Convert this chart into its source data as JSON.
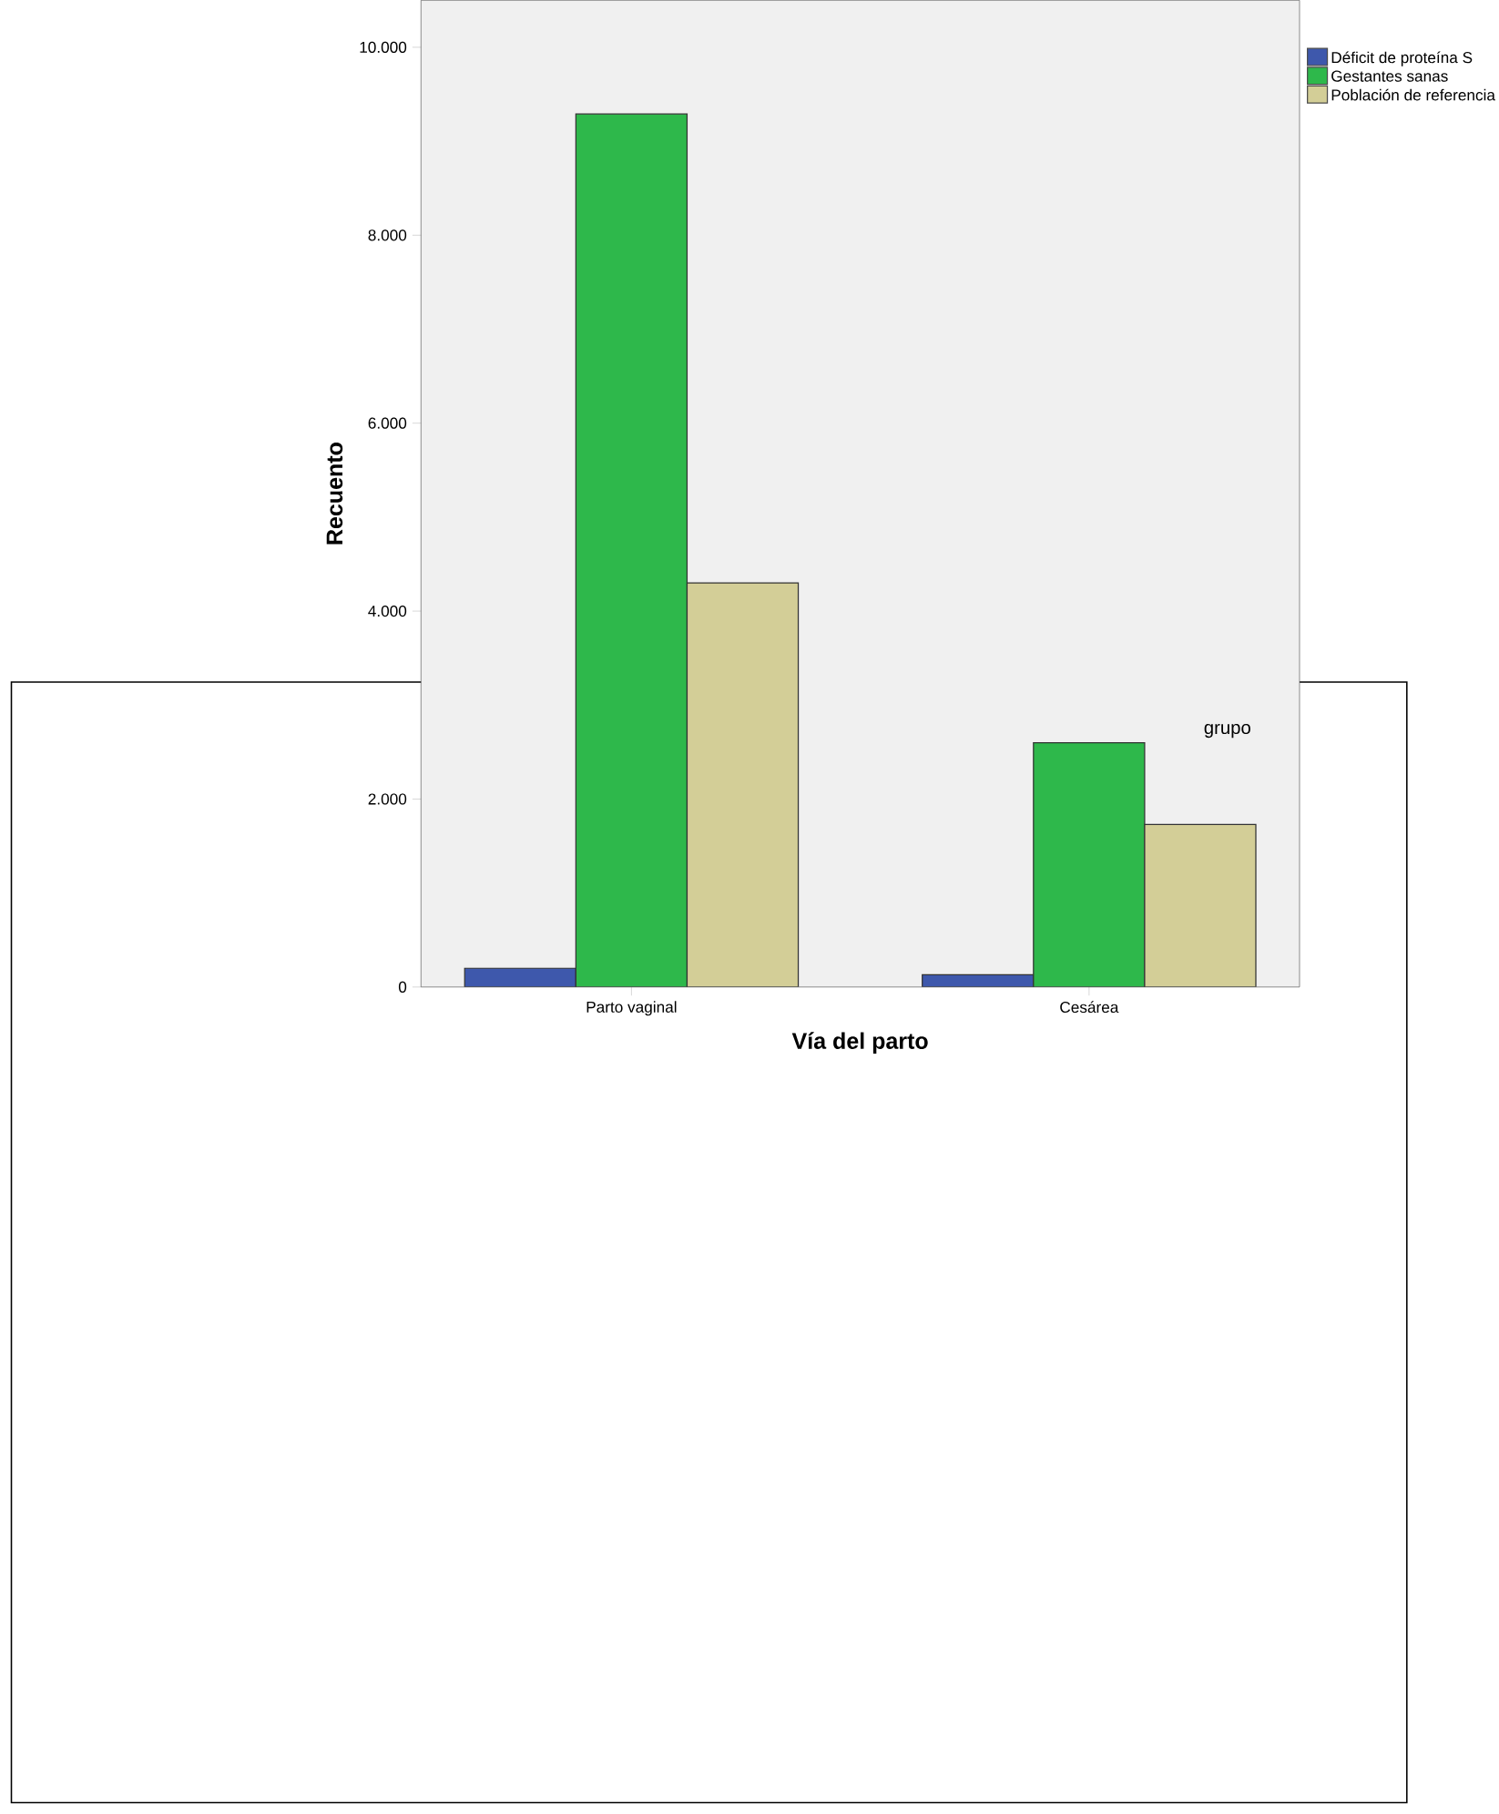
{
  "chart_data": {
    "type": "bar",
    "xlabel": "Vía del parto",
    "ylabel": "Recuento",
    "legend_title": "grupo",
    "legend": "top right",
    "categories": [
      "Parto vaginal",
      "Cesárea"
    ],
    "series": [
      {
        "name": "Déficit de proteína S",
        "color": "#3e58ac",
        "values": [
          200,
          130
        ]
      },
      {
        "name": "Gestantes sanas",
        "color": "#2eb84b",
        "values": [
          9290,
          2600
        ]
      },
      {
        "name": "Población de referencia",
        "color": "#d3ce97",
        "values": [
          4300,
          1730
        ]
      }
    ],
    "ylim": [
      0,
      10500
    ],
    "yticks": [
      {
        "value": 0,
        "label": "0"
      },
      {
        "value": 2000,
        "label": "2.000"
      },
      {
        "value": 4000,
        "label": "4.000"
      },
      {
        "value": 6000,
        "label": "6.000"
      },
      {
        "value": 8000,
        "label": "8.000"
      },
      {
        "value": 10000,
        "label": "10.000"
      }
    ]
  }
}
